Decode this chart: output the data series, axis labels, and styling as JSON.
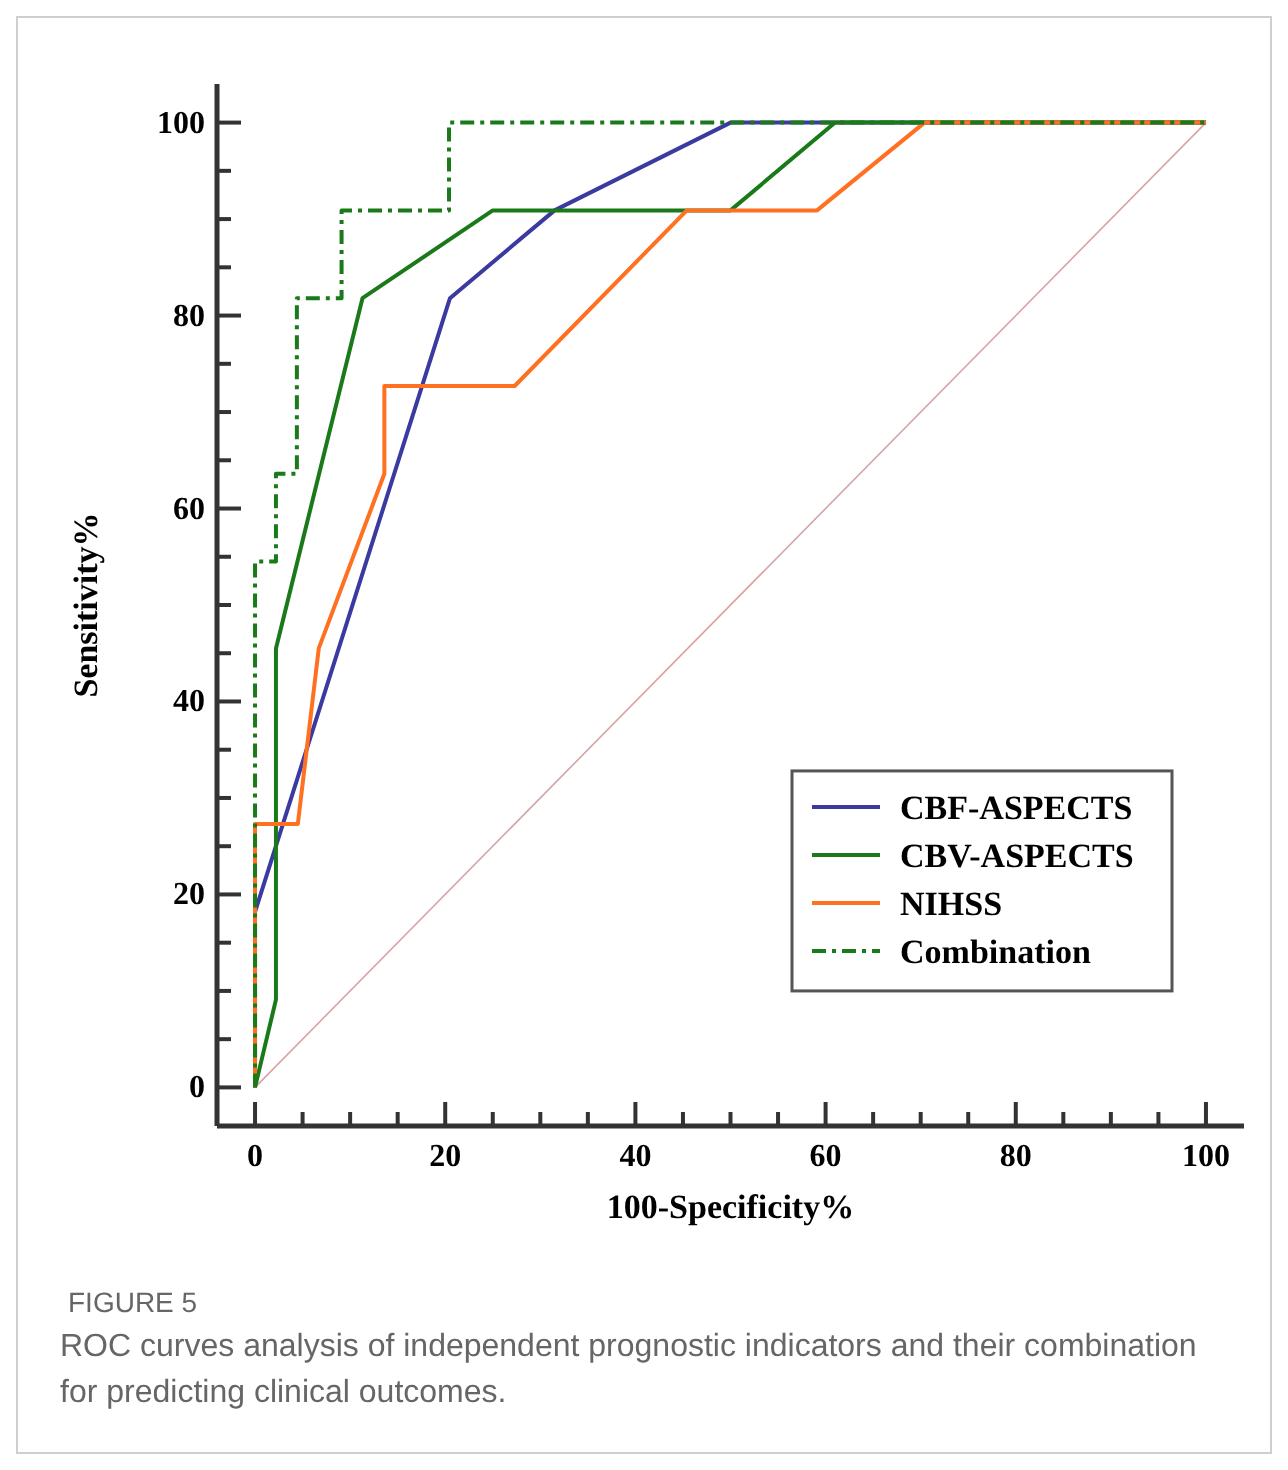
{
  "chart_data": {
    "type": "line",
    "xlabel": "100-Specificity%",
    "ylabel": "Sensitivity%",
    "xlim": [
      -4,
      104
    ],
    "ylim": [
      -4,
      104
    ],
    "xticks": [
      0,
      {
        "value": 5,
        "label": null
      },
      {
        "value": 10,
        "label": null
      },
      {
        "value": 15,
        "label": null
      },
      20,
      {
        "value": 25,
        "label": null
      },
      {
        "value": 30,
        "label": null
      },
      {
        "value": 35,
        "label": null
      },
      40,
      {
        "value": 45,
        "label": null
      },
      {
        "value": 50,
        "label": null
      },
      {
        "value": 55,
        "label": null
      },
      60,
      {
        "value": 65,
        "label": null
      },
      {
        "value": 70,
        "label": null
      },
      {
        "value": 75,
        "label": null
      },
      80,
      {
        "value": 85,
        "label": null
      },
      {
        "value": 90,
        "label": null
      },
      {
        "value": 95,
        "label": null
      },
      100
    ],
    "yticks": [
      0,
      {
        "value": 5,
        "label": null
      },
      {
        "value": 10,
        "label": null
      },
      {
        "value": 15,
        "label": null
      },
      20,
      {
        "value": 25,
        "label": null
      },
      {
        "value": 30,
        "label": null
      },
      {
        "value": 35,
        "label": null
      },
      40,
      {
        "value": 45,
        "label": null
      },
      {
        "value": 50,
        "label": null
      },
      {
        "value": 55,
        "label": null
      },
      60,
      {
        "value": 65,
        "label": null
      },
      {
        "value": 70,
        "label": null
      },
      {
        "value": 75,
        "label": null
      },
      80,
      {
        "value": 85,
        "label": null
      },
      {
        "value": 90,
        "label": null
      },
      {
        "value": 95,
        "label": null
      },
      100
    ],
    "grid": false,
    "legend": "bottom right",
    "marker": "none",
    "line_style": "solid",
    "series": [
      {
        "color": "#d9a3a3",
        "x": [
          0,
          100
        ],
        "values": [
          0,
          100
        ]
      },
      {
        "name": "CBF-ASPECTS",
        "color": "#3a3aa0",
        "x": [
          0,
          0,
          20.5,
          31.5,
          50,
          100
        ],
        "values": [
          0,
          18.2,
          81.8,
          90.9,
          100,
          100
        ]
      },
      {
        "name": "CBV-ASPECTS",
        "color": "#1a7a1a",
        "x": [
          0,
          2.2,
          2.2,
          11.3,
          25,
          50,
          61,
          100
        ],
        "values": [
          0,
          9.1,
          45.5,
          81.8,
          90.9,
          90.9,
          100,
          100
        ]
      },
      {
        "name": "NIHSS",
        "color": "#ff7020",
        "x": [
          0,
          0,
          4.5,
          6.7,
          13.6,
          13.6,
          27.3,
          45.4,
          59.1,
          70.4,
          100
        ],
        "values": [
          0,
          27.3,
          27.3,
          45.5,
          63.6,
          72.7,
          72.7,
          90.9,
          90.9,
          100,
          100
        ]
      },
      {
        "name": "Combination",
        "color": "#1a7a1a",
        "line_style": "dashed",
        "x": [
          0,
          0,
          2.2,
          2.2,
          4.4,
          4.4,
          9.1,
          9.1,
          20.4,
          20.4,
          100
        ],
        "values": [
          0,
          54.5,
          54.5,
          63.6,
          63.6,
          81.8,
          81.8,
          90.9,
          90.9,
          100,
          100
        ]
      }
    ],
    "annotations": [
      "FIGURE 5",
      "ROC curves analysis of independent prognostic indicators and their combination for predicting clinical outcomes."
    ]
  }
}
